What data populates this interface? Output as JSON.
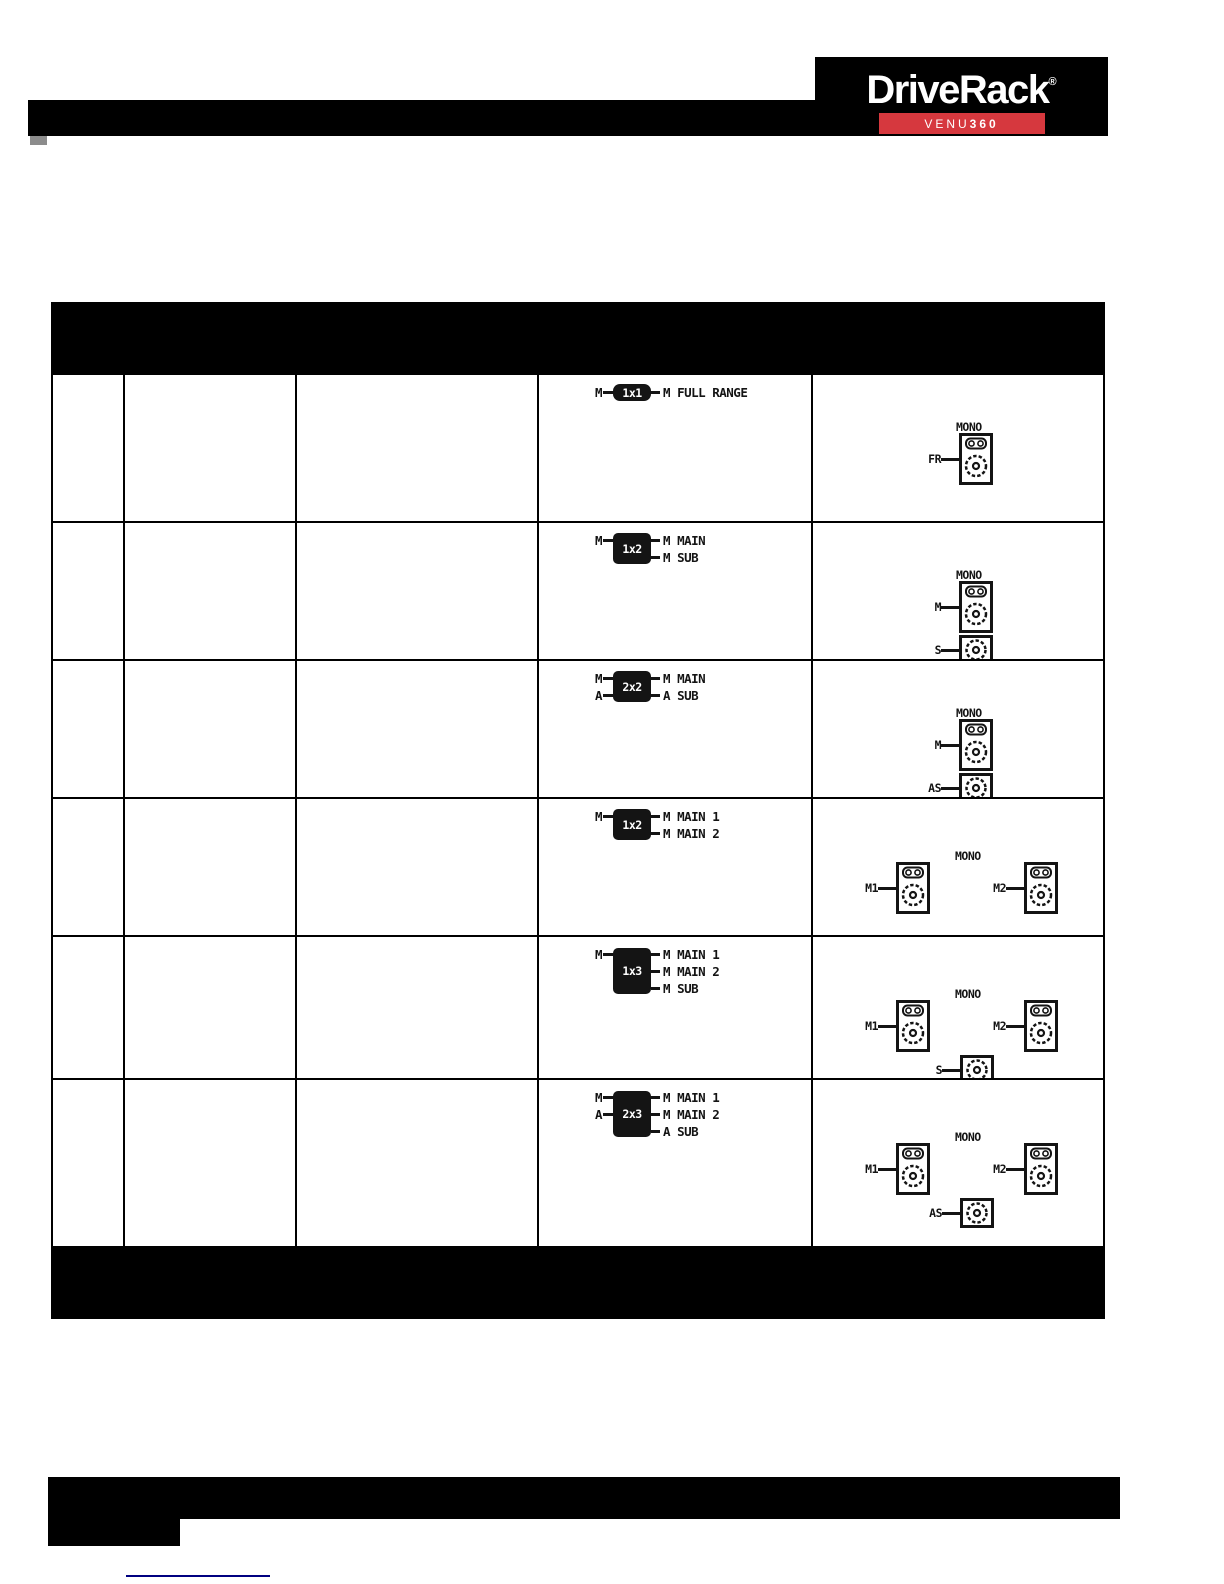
{
  "logo": {
    "brand": "DriveRack",
    "registered": "®",
    "model_prefix": "VENU",
    "model_number": "360"
  },
  "table": {
    "rows": [
      {
        "routing": {
          "inputs": [
            "M"
          ],
          "box": "1x1",
          "outputs": [
            "M FULL RANGE"
          ]
        },
        "diagram": {
          "zone": "MONO",
          "layout": "stacked",
          "speakers": [
            {
              "label": "FR",
              "type": "full_range"
            }
          ]
        }
      },
      {
        "routing": {
          "inputs": [
            "M"
          ],
          "box": "1x2",
          "outputs": [
            "M MAIN",
            "M SUB"
          ]
        },
        "diagram": {
          "zone": "MONO",
          "layout": "stacked",
          "speakers": [
            {
              "label": "M",
              "type": "full_range"
            },
            {
              "label": "S",
              "type": "sub"
            }
          ]
        }
      },
      {
        "routing": {
          "inputs": [
            "M",
            "A"
          ],
          "box": "2x2",
          "outputs": [
            "M MAIN",
            "A SUB"
          ]
        },
        "diagram": {
          "zone": "MONO",
          "layout": "stacked",
          "speakers": [
            {
              "label": "M",
              "type": "full_range"
            },
            {
              "label": "AS",
              "type": "sub"
            }
          ]
        }
      },
      {
        "routing": {
          "inputs": [
            "M"
          ],
          "box": "1x2",
          "outputs": [
            "M MAIN 1",
            "M MAIN 2"
          ]
        },
        "diagram": {
          "zone": "MONO",
          "layout": "wide",
          "speakers": [
            {
              "label": "M1",
              "type": "full_range"
            },
            {
              "label": "M2",
              "type": "full_range"
            }
          ]
        }
      },
      {
        "routing": {
          "inputs": [
            "M"
          ],
          "box": "1x3",
          "outputs": [
            "M MAIN 1",
            "M MAIN 2",
            "M SUB"
          ]
        },
        "diagram": {
          "zone": "MONO",
          "layout": "wide",
          "speakers": [
            {
              "label": "M1",
              "type": "full_range"
            },
            {
              "label": "M2",
              "type": "full_range"
            },
            {
              "label": "S",
              "type": "sub"
            }
          ]
        }
      },
      {
        "routing": {
          "inputs": [
            "M",
            "A"
          ],
          "box": "2x3",
          "outputs": [
            "M MAIN 1",
            "M MAIN 2",
            "A SUB"
          ]
        },
        "diagram": {
          "zone": "MONO",
          "layout": "wide",
          "speakers": [
            {
              "label": "M1",
              "type": "full_range"
            },
            {
              "label": "M2",
              "type": "full_range"
            },
            {
              "label": "AS",
              "type": "sub"
            }
          ]
        }
      }
    ]
  },
  "colors": {
    "accent_red": "#d6383e",
    "link_navy": "#000080",
    "ink": "#141414"
  }
}
